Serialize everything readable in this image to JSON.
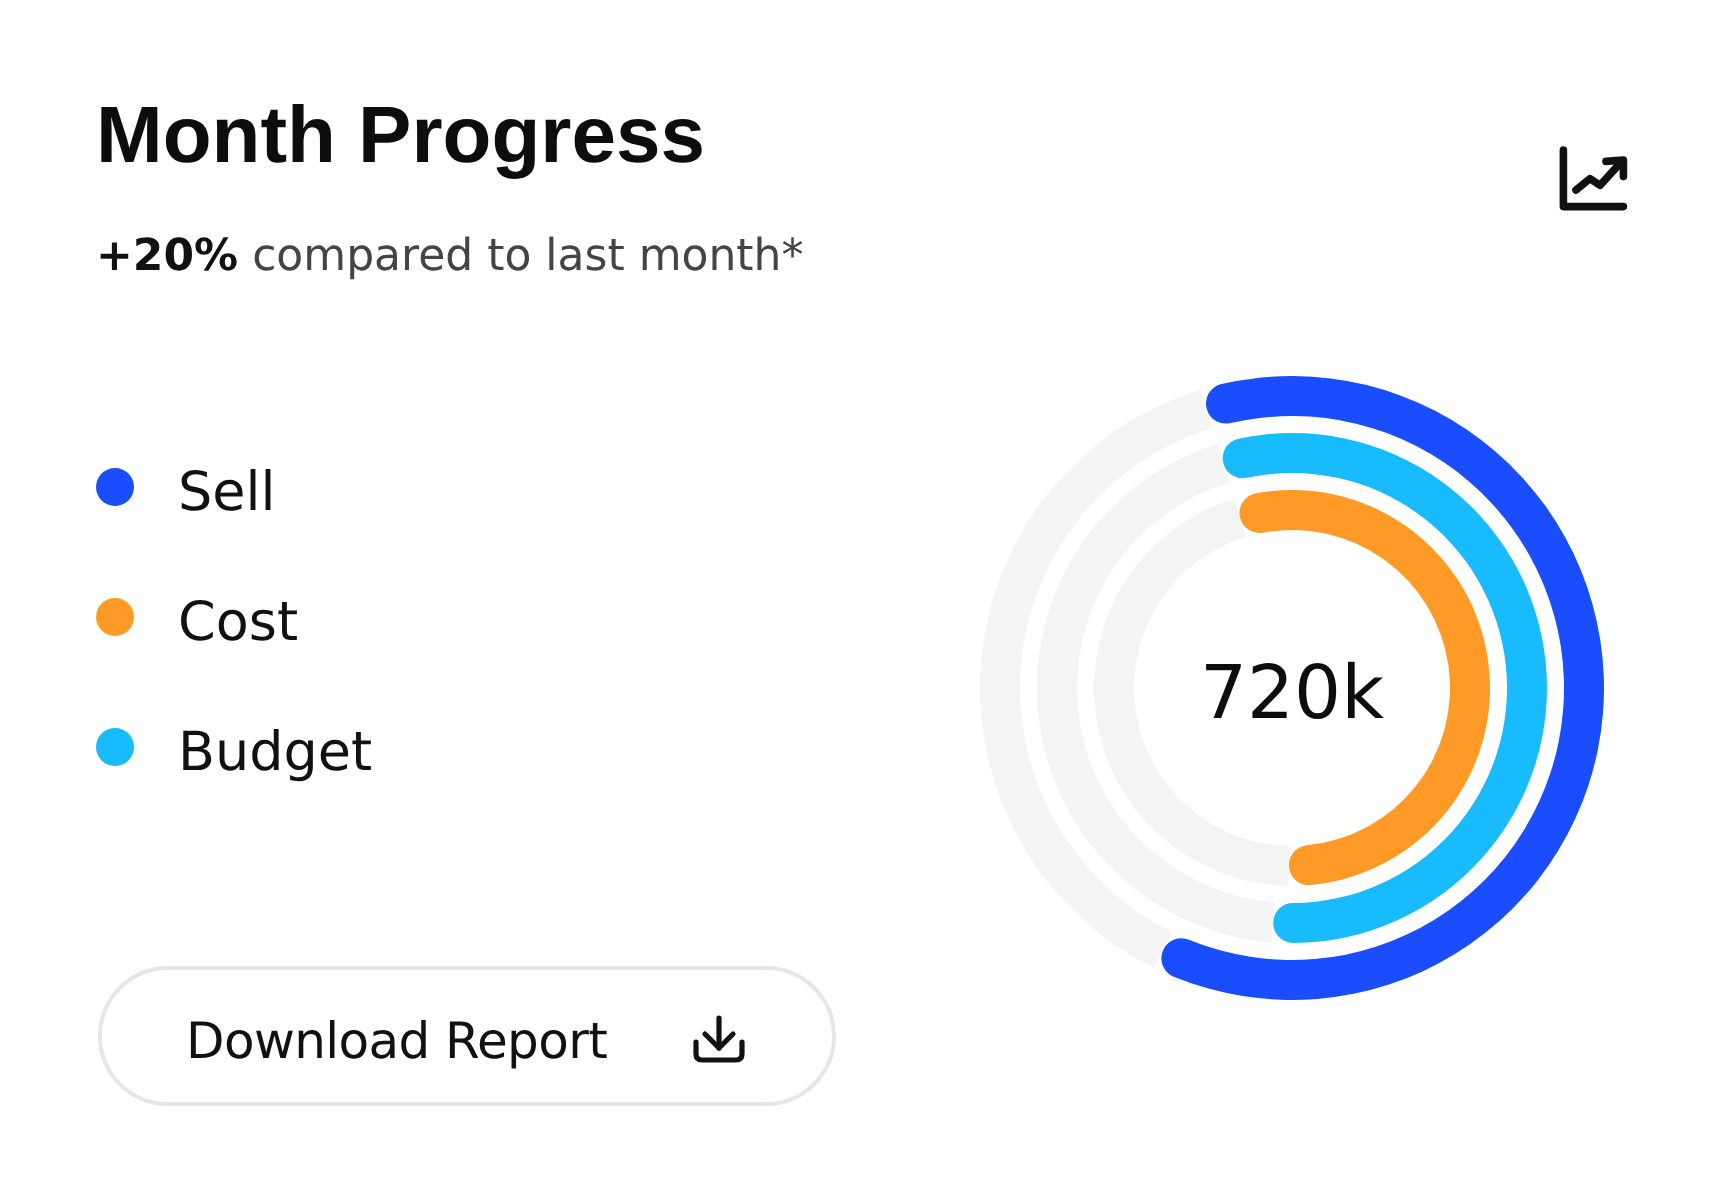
{
  "chart_data": {
    "type": "donut",
    "title": "Month Progress",
    "subtitle": "+20% compared to last month*",
    "categories": [
      "Sell",
      "Cost",
      "Budget",
      null
    ],
    "colors": [
      "#1a4dfe",
      "#fe9a25",
      "#18bbfe",
      "#f4f4f4"
    ],
    "series": [
      {
        "values": [
          62,
          null,
          null,
          38
        ]
      },
      {
        "values": [
          null,
          null,
          56,
          44
        ]
      },
      {
        "values": [
          null,
          55,
          null,
          45
        ]
      }
    ],
    "legend": "left",
    "annotations": [
      "720k",
      "Download Report"
    ]
  }
}
